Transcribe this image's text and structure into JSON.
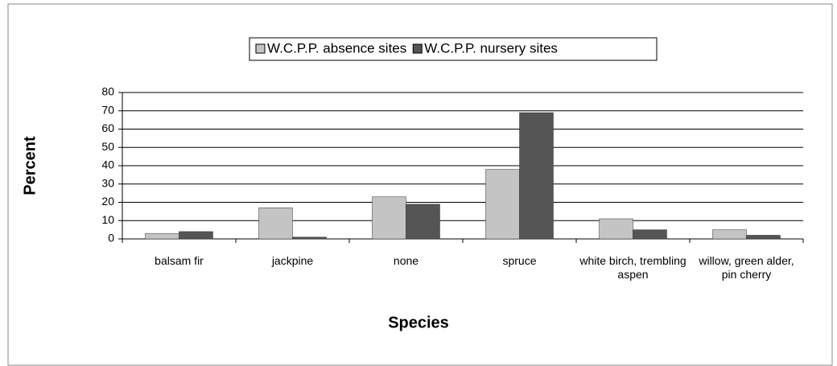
{
  "chart_data": {
    "type": "bar",
    "categories": [
      "balsam fir",
      "jackpine",
      "none",
      "spruce",
      "white birch, trembling aspen",
      "willow, green alder, pin cherry"
    ],
    "series": [
      {
        "name": "W.C.P.P. absence sites",
        "color": "#c4c4c4",
        "values": [
          3,
          17,
          23,
          38,
          11,
          5
        ]
      },
      {
        "name": "W.C.P.P. nursery sites",
        "color": "#555555",
        "values": [
          4,
          1,
          19,
          69,
          5,
          2
        ]
      }
    ],
    "xlabel": "Species",
    "ylabel": "Percent",
    "ylim": [
      0,
      80
    ],
    "yticks": [
      0,
      10,
      20,
      30,
      40,
      50,
      60,
      70,
      80
    ],
    "grid": true,
    "legend": "top"
  }
}
